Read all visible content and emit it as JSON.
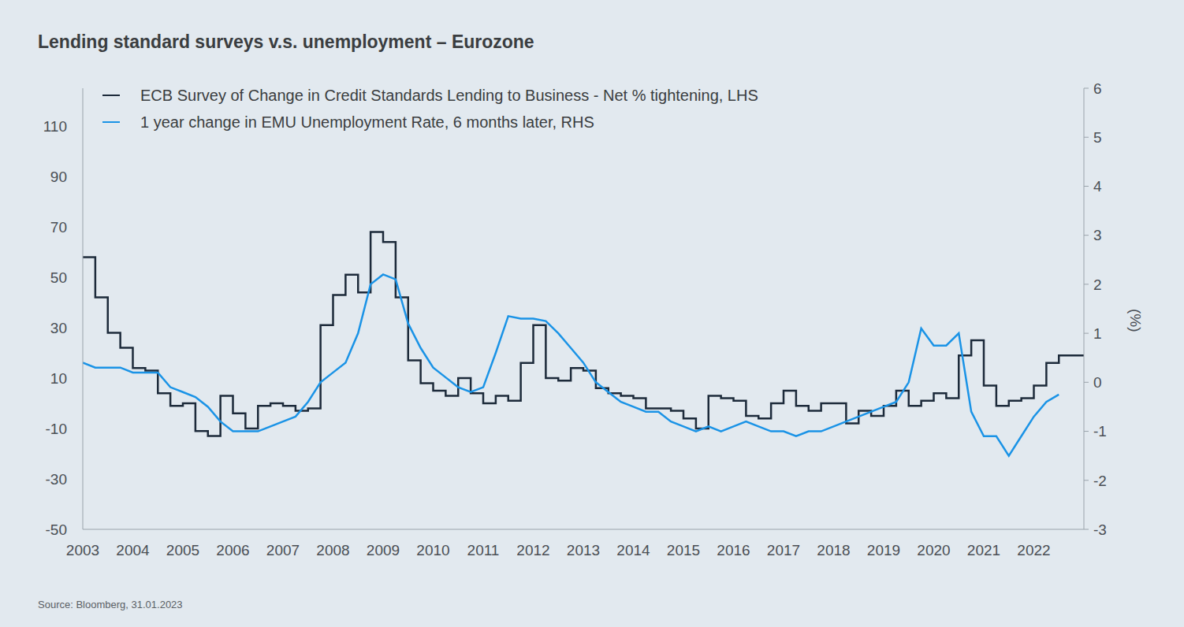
{
  "chart_data": {
    "type": "line",
    "title": "Lending standard surveys v.s. unemployment – Eurozone",
    "source": "Source: Bloomberg, 31.01.2023",
    "y2_label": "(%)",
    "legend": "upper left",
    "grid": false,
    "xlim": [
      2003,
      2023
    ],
    "xticks": [
      2003,
      2004,
      2005,
      2006,
      2007,
      2008,
      2009,
      2010,
      2011,
      2012,
      2013,
      2014,
      2015,
      2016,
      2017,
      2018,
      2019,
      2020,
      2021,
      2022
    ],
    "ylim": [
      -50,
      125
    ],
    "yticks": [
      -50,
      -30,
      -10,
      10,
      30,
      50,
      70,
      90,
      110
    ],
    "y2lim": [
      -3,
      6
    ],
    "y2ticks": [
      -3,
      -2,
      -1,
      0,
      1,
      2,
      3,
      4,
      5,
      6
    ],
    "x": [
      2003,
      2003.25,
      2003.5,
      2003.75,
      2004,
      2004.25,
      2004.5,
      2004.75,
      2005,
      2005.25,
      2005.5,
      2005.75,
      2006,
      2006.25,
      2006.5,
      2006.75,
      2007,
      2007.25,
      2007.5,
      2007.75,
      2008,
      2008.25,
      2008.5,
      2008.75,
      2009,
      2009.25,
      2009.5,
      2009.75,
      2010,
      2010.25,
      2010.5,
      2010.75,
      2011,
      2011.25,
      2011.5,
      2011.75,
      2012,
      2012.25,
      2012.5,
      2012.75,
      2013,
      2013.25,
      2013.5,
      2013.75,
      2014,
      2014.25,
      2014.5,
      2014.75,
      2015,
      2015.25,
      2015.5,
      2015.75,
      2016,
      2016.25,
      2016.5,
      2016.75,
      2017,
      2017.25,
      2017.5,
      2017.75,
      2018,
      2018.25,
      2018.5,
      2018.75,
      2019,
      2019.25,
      2019.5,
      2019.75,
      2020,
      2020.25,
      2020.5,
      2020.75,
      2021,
      2021.25,
      2021.5,
      2021.75,
      2022,
      2022.25,
      2022.5,
      2022.75,
      2023
    ],
    "series": [
      {
        "name": "ECB Survey of Change in Credit Standards Lending to Business - Net % tightening, LHS",
        "color": "#1c2a3a",
        "axis": "y",
        "line_style": "step",
        "values": [
          58,
          42,
          28,
          22,
          14,
          13,
          4,
          -1,
          0,
          -11,
          -13,
          3,
          -4,
          -10,
          -1,
          0,
          -1,
          -3,
          -2,
          31,
          43,
          51,
          44,
          68,
          64,
          42,
          17,
          8,
          5,
          3,
          10,
          4,
          0,
          3,
          1,
          16,
          31,
          10,
          9,
          14,
          13,
          6,
          4,
          3,
          2,
          -2,
          -2,
          -3,
          -6,
          -10,
          3,
          2,
          1,
          -5,
          -6,
          0,
          5,
          -1,
          -3,
          0,
          0,
          -8,
          -3,
          -5,
          -1,
          5,
          -1,
          1,
          4,
          2,
          19,
          25,
          7,
          -1,
          1,
          2,
          7,
          16,
          19,
          19,
          19
        ]
      },
      {
        "name": "1 year change in EMU Unemployment Rate, 6 months later, RHS",
        "color": "#1a93e6",
        "axis": "y2",
        "line_style": "solid",
        "values": [
          0.4,
          0.3,
          0.3,
          0.3,
          0.2,
          0.2,
          0.2,
          -0.1,
          -0.2,
          -0.3,
          -0.5,
          -0.8,
          -1.0,
          -1.0,
          -1.0,
          -0.9,
          -0.8,
          -0.7,
          -0.4,
          0.0,
          0.2,
          0.4,
          1.0,
          2.0,
          2.2,
          2.1,
          1.2,
          0.7,
          0.3,
          0.1,
          -0.1,
          -0.2,
          -0.1,
          0.6,
          1.35,
          1.3,
          1.3,
          1.25,
          1.0,
          0.7,
          0.4,
          0.0,
          -0.2,
          -0.4,
          -0.5,
          -0.6,
          -0.6,
          -0.8,
          -0.9,
          -1.0,
          -0.9,
          -1.0,
          -0.9,
          -0.8,
          -0.9,
          -1.0,
          -1.0,
          -1.1,
          -1.0,
          -1.0,
          -0.9,
          -0.8,
          -0.7,
          -0.6,
          -0.5,
          -0.4,
          0.0,
          1.1,
          0.75,
          0.75,
          1.0,
          -0.6,
          -1.1,
          -1.1,
          -1.5,
          -1.1,
          -0.7,
          -0.4,
          -0.25,
          null,
          null
        ]
      }
    ]
  }
}
